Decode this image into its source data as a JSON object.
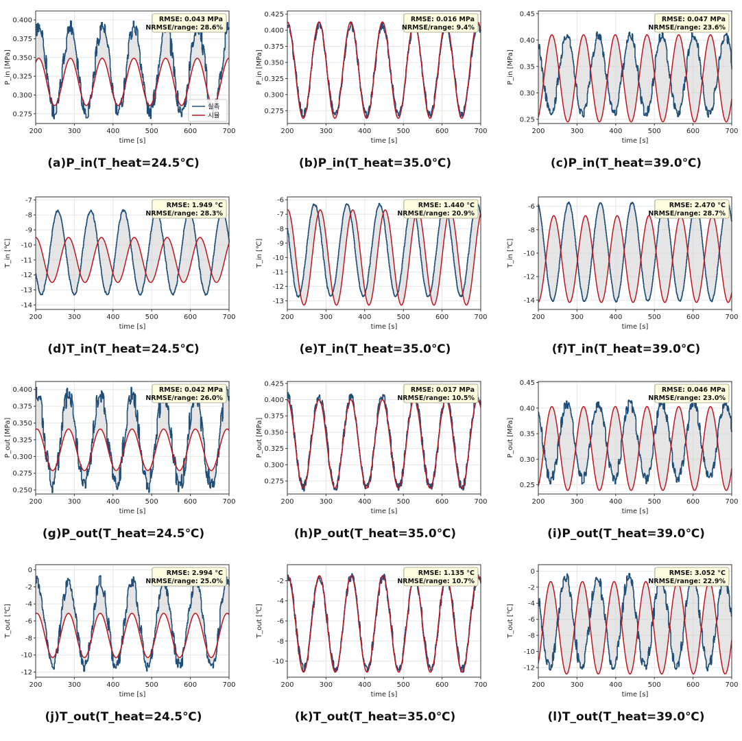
{
  "figure": {
    "x_label": "time [s]",
    "legend": {
      "measured": "실측",
      "simulated": "시뮬"
    },
    "colors": {
      "measured": "#1f4e79",
      "simulated": "#c0141c",
      "fill": "#cfcfcf",
      "box": "#fffde0",
      "grid": "#e6e6e6"
    }
  },
  "chart_data": [
    {
      "type": "line",
      "caption": "(a)P_in(T_heat=24.5℃)",
      "ylabel": "P_in [MPa]",
      "xlim": [
        200,
        700
      ],
      "xticks": [
        200,
        300,
        400,
        500,
        600,
        700
      ],
      "ylim": [
        0.262,
        0.412
      ],
      "yticks": [
        "0.275",
        "0.300",
        "0.325",
        "0.350",
        "0.375",
        "0.400"
      ],
      "rmse": "RMSE: 0.043 MPa",
      "nrmse": "NRMSE/range: 28.6%",
      "legend": "bottom-right",
      "period": 82,
      "phase": 290,
      "series": [
        {
          "name": "실측",
          "center": 0.334,
          "amplitude": 0.058,
          "noise": 0.014
        },
        {
          "name": "시뮬",
          "center": 0.3175,
          "amplitude": 0.0315
        }
      ]
    },
    {
      "type": "line",
      "caption": "(b)P_in(T_heat=35.0℃)",
      "ylabel": "P_in [MPa]",
      "xlim": [
        200,
        700
      ],
      "xticks": [
        200,
        300,
        400,
        500,
        600,
        700
      ],
      "ylim": [
        0.255,
        0.43
      ],
      "yticks": [
        "0.275",
        "0.300",
        "0.325",
        "0.350",
        "0.375",
        "0.400",
        "0.425"
      ],
      "rmse": "RMSE: 0.016 MPa",
      "nrmse": "NRMSE/range: 9.4%",
      "legend": "",
      "period": 82,
      "phase": 282,
      "series": [
        {
          "name": "실측",
          "center": 0.338,
          "amplitude": 0.07,
          "noise": 0.008
        },
        {
          "name": "시뮬",
          "center": 0.338,
          "amplitude": 0.075
        }
      ]
    },
    {
      "type": "line",
      "caption": "(c)P_in(T_heat=39.0℃)",
      "ylabel": "P_in [MPa]",
      "xlim": [
        200,
        700
      ],
      "xticks": [
        200,
        300,
        400,
        500,
        600,
        700
      ],
      "ylim": [
        0.242,
        0.455
      ],
      "yticks": [
        "0.25",
        "0.30",
        "0.35",
        "0.40",
        "0.45"
      ],
      "rmse": "RMSE: 0.047 MPa",
      "nrmse": "NRMSE/range: 23.6%",
      "legend": "",
      "period": 82,
      "phase": 235,
      "series": [
        {
          "name": "실측",
          "center": 0.335,
          "amplitude": 0.075,
          "noise": 0.012,
          "shift": 38
        },
        {
          "name": "시뮬",
          "center": 0.3275,
          "amplitude": 0.0825
        }
      ]
    },
    {
      "type": "line",
      "caption": "(d)T_in(T_heat=24.5℃)",
      "ylabel": "T_in [℃]",
      "xlim": [
        200,
        700
      ],
      "xticks": [
        200,
        300,
        400,
        500,
        600,
        700
      ],
      "ylim": [
        -14.3,
        -6.8
      ],
      "yticks": [
        "-7",
        "-8",
        "-9",
        "-10",
        "-11",
        "-12",
        "-13",
        "-14"
      ],
      "rmse": "RMSE: 1.949 °C",
      "nrmse": "NRMSE/range: 28.3%",
      "legend": "",
      "period": 85,
      "phase": 285,
      "series": [
        {
          "name": "실측",
          "center": -10.5,
          "amplitude": 2.8,
          "noise": 0.1,
          "shift": -28
        },
        {
          "name": "시뮬",
          "center": -11.0,
          "amplitude": 1.5
        }
      ]
    },
    {
      "type": "line",
      "caption": "(e)T_in(T_heat=35.0℃)",
      "ylabel": "T_in [℃]",
      "xlim": [
        200,
        700
      ],
      "xticks": [
        200,
        300,
        400,
        500,
        600,
        700
      ],
      "ylim": [
        -13.6,
        -5.8
      ],
      "yticks": [
        "-6",
        "-7",
        "-8",
        "-9",
        "-10",
        "-11",
        "-12",
        "-13"
      ],
      "rmse": "RMSE: 1.440 °C",
      "nrmse": "NRMSE/range: 20.9%",
      "legend": "",
      "period": 84,
      "phase": 285,
      "series": [
        {
          "name": "실측",
          "center": -9.5,
          "amplitude": 3.2,
          "noise": 0.1,
          "shift": -15
        },
        {
          "name": "시뮬",
          "center": -10.0,
          "amplitude": 3.3
        }
      ]
    },
    {
      "type": "line",
      "caption": "(f)T_in(T_heat=39.0℃)",
      "ylabel": "T_in [℃]",
      "xlim": [
        200,
        700
      ],
      "xticks": [
        200,
        300,
        400,
        500,
        600,
        700
      ],
      "ylim": [
        -14.8,
        -5.2
      ],
      "yticks": [
        "-6",
        "-8",
        "-10",
        "-12",
        "-14"
      ],
      "rmse": "RMSE: 2.470 °C",
      "nrmse": "NRMSE/range: 28.7%",
      "legend": "",
      "period": 82,
      "phase": 240,
      "series": [
        {
          "name": "실측",
          "center": -9.9,
          "amplitude": 4.2,
          "noise": 0.1,
          "shift": 38
        },
        {
          "name": "시뮬",
          "center": -10.5,
          "amplitude": 3.7
        }
      ]
    },
    {
      "type": "line",
      "caption": "(g)P_out(T_heat=24.5℃)",
      "ylabel": "P_out [MPa]",
      "xlim": [
        200,
        700
      ],
      "xticks": [
        200,
        300,
        400,
        500,
        600,
        700
      ],
      "ylim": [
        0.244,
        0.412
      ],
      "yticks": [
        "0.250",
        "0.275",
        "0.300",
        "0.325",
        "0.350",
        "0.375",
        "0.400"
      ],
      "rmse": "RMSE: 0.042 MPa",
      "nrmse": "NRMSE/range: 26.0%",
      "legend": "",
      "period": 82,
      "phase": 285,
      "series": [
        {
          "name": "실측",
          "center": 0.325,
          "amplitude": 0.068,
          "noise": 0.018
        },
        {
          "name": "시뮬",
          "center": 0.31,
          "amplitude": 0.031
        }
      ]
    },
    {
      "type": "line",
      "caption": "(h)P_out(T_heat=35.0℃)",
      "ylabel": "P_out [MPa]",
      "xlim": [
        200,
        700
      ],
      "xticks": [
        200,
        300,
        400,
        500,
        600,
        700
      ],
      "ylim": [
        0.255,
        0.428
      ],
      "yticks": [
        "0.275",
        "0.300",
        "0.325",
        "0.350",
        "0.375",
        "0.400",
        "0.425"
      ],
      "rmse": "RMSE: 0.017 MPa",
      "nrmse": "NRMSE/range: 10.5%",
      "legend": "",
      "period": 82,
      "phase": 282,
      "series": [
        {
          "name": "실측",
          "center": 0.335,
          "amplitude": 0.07,
          "noise": 0.01
        },
        {
          "name": "시뮬",
          "center": 0.332,
          "amplitude": 0.068
        }
      ]
    },
    {
      "type": "line",
      "caption": "(i)P_out(T_heat=39.0℃)",
      "ylabel": "P_out [MPa]",
      "xlim": [
        200,
        700
      ],
      "xticks": [
        200,
        300,
        400,
        500,
        600,
        700
      ],
      "ylim": [
        0.232,
        0.452
      ],
      "yticks": [
        "0.25",
        "0.30",
        "0.35",
        "0.40",
        "0.45"
      ],
      "rmse": "RMSE: 0.046 MPa",
      "nrmse": "NRMSE/range: 23.0%",
      "legend": "",
      "period": 82,
      "phase": 235,
      "series": [
        {
          "name": "실측",
          "center": 0.335,
          "amplitude": 0.075,
          "noise": 0.014,
          "shift": 38
        },
        {
          "name": "시뮬",
          "center": 0.321,
          "amplitude": 0.082
        }
      ]
    },
    {
      "type": "line",
      "caption": "(j)T_out(T_heat=24.5℃)",
      "ylabel": "T_out [℃]",
      "xlim": [
        200,
        700
      ],
      "xticks": [
        200,
        300,
        400,
        500,
        600,
        700
      ],
      "ylim": [
        -12.6,
        0.6
      ],
      "yticks": [
        "0",
        "-2",
        "-4",
        "-6",
        "-8",
        "-10",
        "-12"
      ],
      "rmse": "RMSE: 2.994 °C",
      "nrmse": "NRMSE/range: 25.0%",
      "legend": "",
      "period": 82,
      "phase": 285,
      "series": [
        {
          "name": "실측",
          "center": -6.3,
          "amplitude": 5.0,
          "noise": 1.0
        },
        {
          "name": "시뮬",
          "center": -7.7,
          "amplitude": 2.6
        }
      ]
    },
    {
      "type": "line",
      "caption": "(k)T_out(T_heat=35.0℃)",
      "ylabel": "T_out [℃]",
      "xlim": [
        200,
        700
      ],
      "xticks": [
        200,
        300,
        400,
        500,
        600,
        700
      ],
      "ylim": [
        -11.6,
        -0.4
      ],
      "yticks": [
        "-2",
        "-4",
        "-6",
        "-8",
        "-10"
      ],
      "rmse": "RMSE: 1.135 °C",
      "nrmse": "NRMSE/range: 10.7%",
      "legend": "",
      "period": 82,
      "phase": 283,
      "series": [
        {
          "name": "실측",
          "center": -6.2,
          "amplitude": 4.6,
          "noise": 0.6
        },
        {
          "name": "시뮬",
          "center": -6.3,
          "amplitude": 4.8
        }
      ]
    },
    {
      "type": "line",
      "caption": "(l)T_out(T_heat=39.0℃)",
      "ylabel": "T_out [℃]",
      "xlim": [
        200,
        700
      ],
      "xticks": [
        200,
        300,
        400,
        500,
        600,
        700
      ],
      "ylim": [
        -13.2,
        0.8
      ],
      "yticks": [
        "0",
        "-2",
        "-4",
        "-6",
        "-8",
        "-10",
        "-12"
      ],
      "rmse": "RMSE: 3.052 °C",
      "nrmse": "NRMSE/range: 22.9%",
      "legend": "",
      "period": 82,
      "phase": 232,
      "series": [
        {
          "name": "실측",
          "center": -6.3,
          "amplitude": 5.6,
          "noise": 1.0,
          "shift": 38
        },
        {
          "name": "시뮬",
          "center": -7.05,
          "amplitude": 5.75
        }
      ]
    }
  ]
}
